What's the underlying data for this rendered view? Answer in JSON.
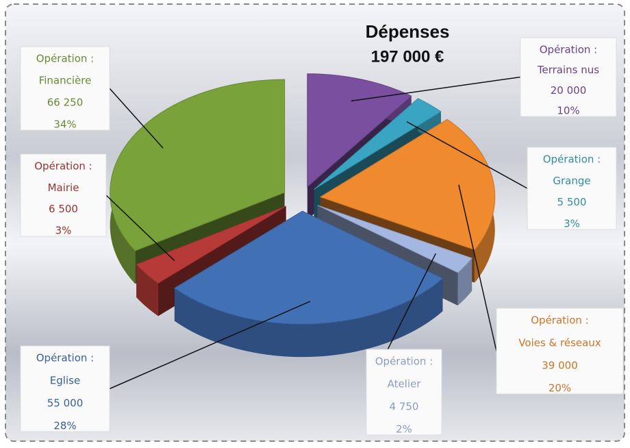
{
  "chart_data": {
    "type": "pie",
    "title": "Dépenses",
    "subtitle": "197 000 €",
    "label_prefix": "Opération :",
    "categories": [
      "Terrains nus",
      "Grange",
      "Voies & réseaux",
      "Atelier",
      "Eglise",
      "Mairie",
      "Financière"
    ],
    "values": [
      20000,
      5500,
      39000,
      4750,
      55000,
      6500,
      66250
    ],
    "value_labels": [
      "20 000",
      "5 500",
      "39 000",
      "4 750",
      "55 000",
      "6 500",
      "66 250"
    ],
    "percents": [
      10,
      3,
      20,
      2,
      28,
      3,
      34
    ],
    "percent_labels": [
      "10%",
      "3%",
      "20%",
      "2%",
      "28%",
      "3%",
      "34%"
    ],
    "colors": [
      "#7b4f9f",
      "#3aa5c2",
      "#ef8a2f",
      "#a3b7e0",
      "#4170b5",
      "#b63a37",
      "#79a23b"
    ]
  }
}
